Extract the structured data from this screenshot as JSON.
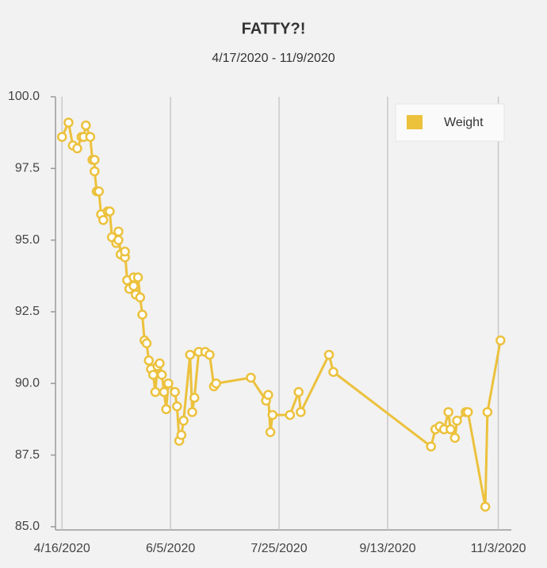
{
  "chart_data": {
    "type": "line",
    "title": "FATTY?!",
    "subtitle": "4/17/2020 - 11/9/2020",
    "x": [
      "2020-04-16",
      "2020-04-19",
      "2020-04-21",
      "2020-04-23",
      "2020-04-25",
      "2020-04-26",
      "2020-04-27",
      "2020-04-29",
      "2020-04-30",
      "2020-05-01",
      "2020-05-01",
      "2020-05-02",
      "2020-05-03",
      "2020-05-04",
      "2020-05-05",
      "2020-05-07",
      "2020-05-08",
      "2020-05-09",
      "2020-05-11",
      "2020-05-12",
      "2020-05-12",
      "2020-05-13",
      "2020-05-15",
      "2020-05-15",
      "2020-05-16",
      "2020-05-17",
      "2020-05-19",
      "2020-05-19",
      "2020-05-20",
      "2020-05-21",
      "2020-05-22",
      "2020-05-23",
      "2020-05-24",
      "2020-05-25",
      "2020-05-26",
      "2020-05-27",
      "2020-05-28",
      "2020-05-29",
      "2020-05-30",
      "2020-05-31",
      "2020-06-01",
      "2020-06-02",
      "2020-06-03",
      "2020-06-04",
      "2020-06-07",
      "2020-06-08",
      "2020-06-09",
      "2020-06-10",
      "2020-06-11",
      "2020-06-14",
      "2020-06-15",
      "2020-06-16",
      "2020-06-18",
      "2020-06-21",
      "2020-06-23",
      "2020-06-25",
      "2020-06-26",
      "2020-07-12",
      "2020-07-19",
      "2020-07-20",
      "2020-07-21",
      "2020-07-22",
      "2020-07-30",
      "2020-08-03",
      "2020-08-04",
      "2020-08-17",
      "2020-08-19",
      "2020-10-03",
      "2020-10-05",
      "2020-10-07",
      "2020-10-09",
      "2020-10-11",
      "2020-10-12",
      "2020-10-14",
      "2020-10-15",
      "2020-10-19",
      "2020-10-20",
      "2020-10-28",
      "2020-10-29",
      "2020-11-04"
    ],
    "series": [
      {
        "name": "Weight",
        "color": "#ecc13c",
        "values": [
          98.6,
          99.1,
          98.3,
          98.2,
          98.6,
          98.6,
          99.0,
          98.6,
          97.8,
          97.8,
          97.4,
          96.7,
          96.7,
          95.9,
          95.7,
          96.0,
          96.0,
          95.1,
          94.9,
          95.0,
          95.3,
          94.5,
          94.4,
          94.6,
          93.6,
          93.3,
          93.7,
          93.4,
          93.1,
          93.7,
          93.0,
          92.4,
          91.5,
          91.4,
          90.8,
          90.5,
          90.3,
          89.7,
          90.6,
          90.7,
          90.3,
          89.7,
          89.1,
          90.0,
          89.7,
          89.2,
          88.0,
          88.2,
          88.7,
          91.0,
          89.0,
          89.5,
          91.1,
          91.1,
          91.0,
          89.9,
          90.0,
          90.2,
          89.4,
          89.6,
          88.3,
          88.9,
          88.9,
          89.7,
          89.0,
          91.0,
          90.4,
          87.8,
          88.4,
          88.5,
          88.4,
          89.0,
          88.4,
          88.1,
          88.7,
          89.0,
          89.0,
          85.7,
          89.0,
          91.5
        ]
      }
    ],
    "xlim": [
      "2020-04-13",
      "2020-11-09"
    ],
    "xticks": [
      {
        "value": "2020-04-16",
        "label": "4/16/2020"
      },
      {
        "value": "2020-06-05",
        "label": "6/5/2020"
      },
      {
        "value": "2020-07-25",
        "label": "7/25/2020"
      },
      {
        "value": "2020-09-13",
        "label": "9/13/2020"
      },
      {
        "value": "2020-11-03",
        "label": "11/3/2020"
      }
    ],
    "ylim": [
      85,
      100
    ],
    "yticks": [
      {
        "value": 85,
        "label": "85.0"
      },
      {
        "value": 87.5,
        "label": "87.5"
      },
      {
        "value": 90,
        "label": "90.0"
      },
      {
        "value": 92.5,
        "label": "92.5"
      },
      {
        "value": 95,
        "label": "95.0"
      },
      {
        "value": 97.5,
        "label": "97.5"
      },
      {
        "value": 100,
        "label": "100.0"
      }
    ],
    "grid": "x",
    "legend": "top-right"
  }
}
